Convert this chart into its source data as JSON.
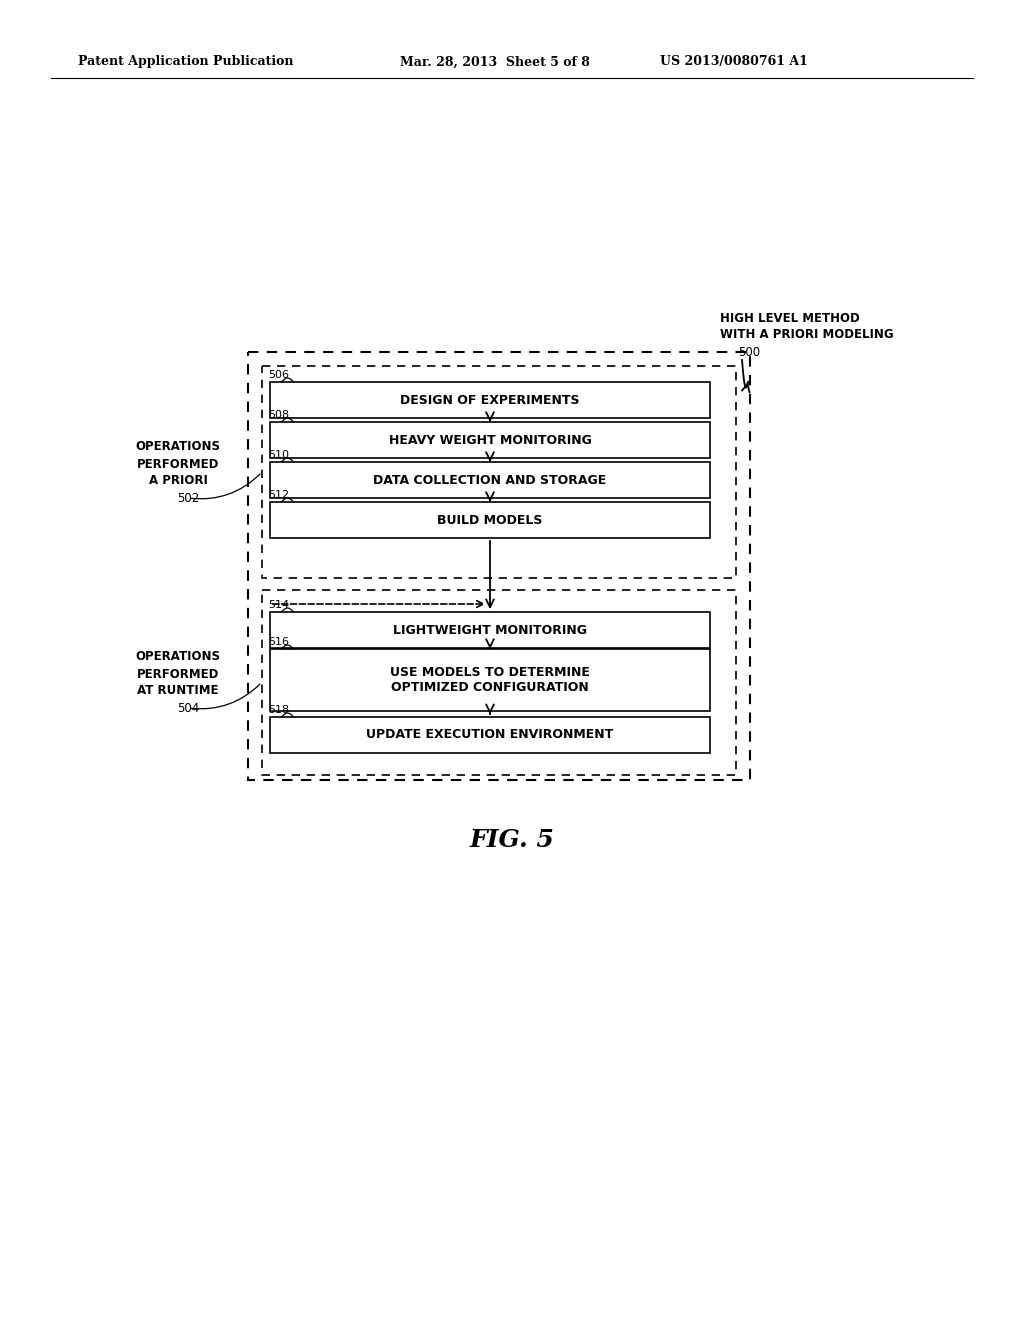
{
  "header_left": "Patent Application Publication",
  "header_mid": "Mar. 28, 2013  Sheet 5 of 8",
  "header_right": "US 2013/0080761 A1",
  "fig_label": "FIG. 5",
  "title_line1": "HIGH LEVEL METHOD",
  "title_line2": "WITH A PRIORI MODELING",
  "title_ref": "500",
  "ops_apriori_line1": "OPERATIONS",
  "ops_apriori_line2": "PERFORMED",
  "ops_apriori_line3": "A PRIORI",
  "ops_apriori_ref": "502",
  "ops_runtime_line1": "OPERATIONS",
  "ops_runtime_line2": "PERFORMED",
  "ops_runtime_line3": "AT RUNTIME",
  "ops_runtime_ref": "504",
  "boxes": [
    {
      "id": "506",
      "label": "DESIGN OF EXPERIMENTS"
    },
    {
      "id": "508",
      "label": "HEAVY WEIGHT MONITORING"
    },
    {
      "id": "510",
      "label": "DATA COLLECTION AND STORAGE"
    },
    {
      "id": "512",
      "label": "BUILD MODELS"
    },
    {
      "id": "514",
      "label": "LIGHTWEIGHT MONITORING"
    },
    {
      "id": "516",
      "label": "USE MODELS TO DETERMINE\nOPTIMIZED CONFIGURATION"
    },
    {
      "id": "518",
      "label": "UPDATE EXECUTION ENVIRONMENT"
    }
  ]
}
